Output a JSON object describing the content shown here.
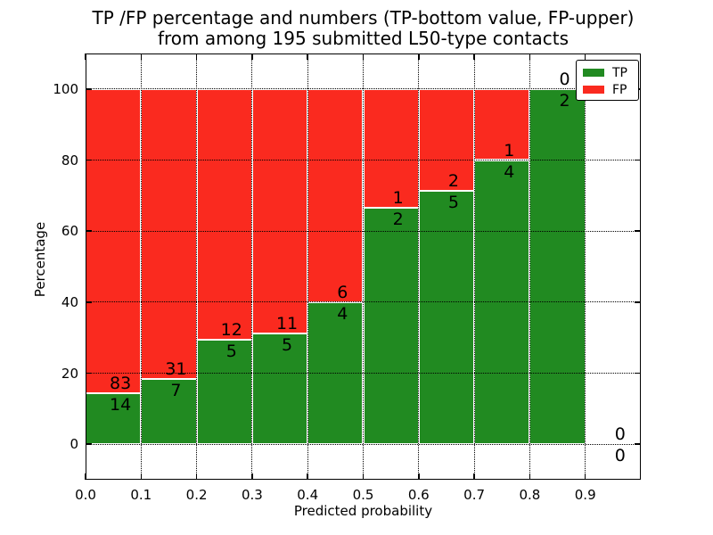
{
  "title": {
    "line1": "TP /FP percentage and numbers (TP-bottom value, FP-upper)",
    "line2": "from among 195 submitted L50-type contacts"
  },
  "axes": {
    "xlabel": "Predicted probability",
    "ylabel": "Percentage",
    "xticks": [
      "0.0",
      "0.1",
      "0.2",
      "0.3",
      "0.4",
      "0.5",
      "0.6",
      "0.7",
      "0.8",
      "0.9"
    ],
    "yticks": [
      "0",
      "20",
      "40",
      "60",
      "80",
      "100"
    ]
  },
  "legend": {
    "entries": [
      {
        "label": "TP",
        "color": "#218a21"
      },
      {
        "label": "FP",
        "color": "#fa2a1f"
      }
    ],
    "position": "upper right"
  },
  "chart_data": {
    "type": "bar",
    "stacked": true,
    "normalized_to": 100,
    "title": "TP /FP percentage and numbers (TP-bottom value, FP-upper) from among 195 submitted L50-type contacts",
    "xlabel": "Predicted probability",
    "ylabel": "Percentage",
    "xlim": [
      0.0,
      1.0
    ],
    "ylim": [
      -10,
      110
    ],
    "bin_width": 0.1,
    "grid": "dotted",
    "legend_position": "upper right",
    "total_contacts": 195,
    "bins": [
      {
        "x_start": 0.0,
        "tp": 14,
        "fp": 83
      },
      {
        "x_start": 0.1,
        "tp": 7,
        "fp": 31
      },
      {
        "x_start": 0.2,
        "tp": 5,
        "fp": 12
      },
      {
        "x_start": 0.3,
        "tp": 5,
        "fp": 11
      },
      {
        "x_start": 0.4,
        "tp": 4,
        "fp": 6
      },
      {
        "x_start": 0.5,
        "tp": 2,
        "fp": 1
      },
      {
        "x_start": 0.6,
        "tp": 5,
        "fp": 2
      },
      {
        "x_start": 0.7,
        "tp": 4,
        "fp": 1
      },
      {
        "x_start": 0.8,
        "tp": 2,
        "fp": 0
      },
      {
        "x_start": 0.9,
        "tp": 0,
        "fp": 0
      }
    ],
    "series": [
      {
        "name": "TP",
        "color": "#218a21",
        "values": [
          14,
          7,
          5,
          5,
          4,
          2,
          5,
          4,
          2,
          0
        ]
      },
      {
        "name": "FP",
        "color": "#fa2a1f",
        "values": [
          83,
          31,
          12,
          11,
          6,
          1,
          2,
          1,
          0,
          0
        ]
      }
    ]
  }
}
